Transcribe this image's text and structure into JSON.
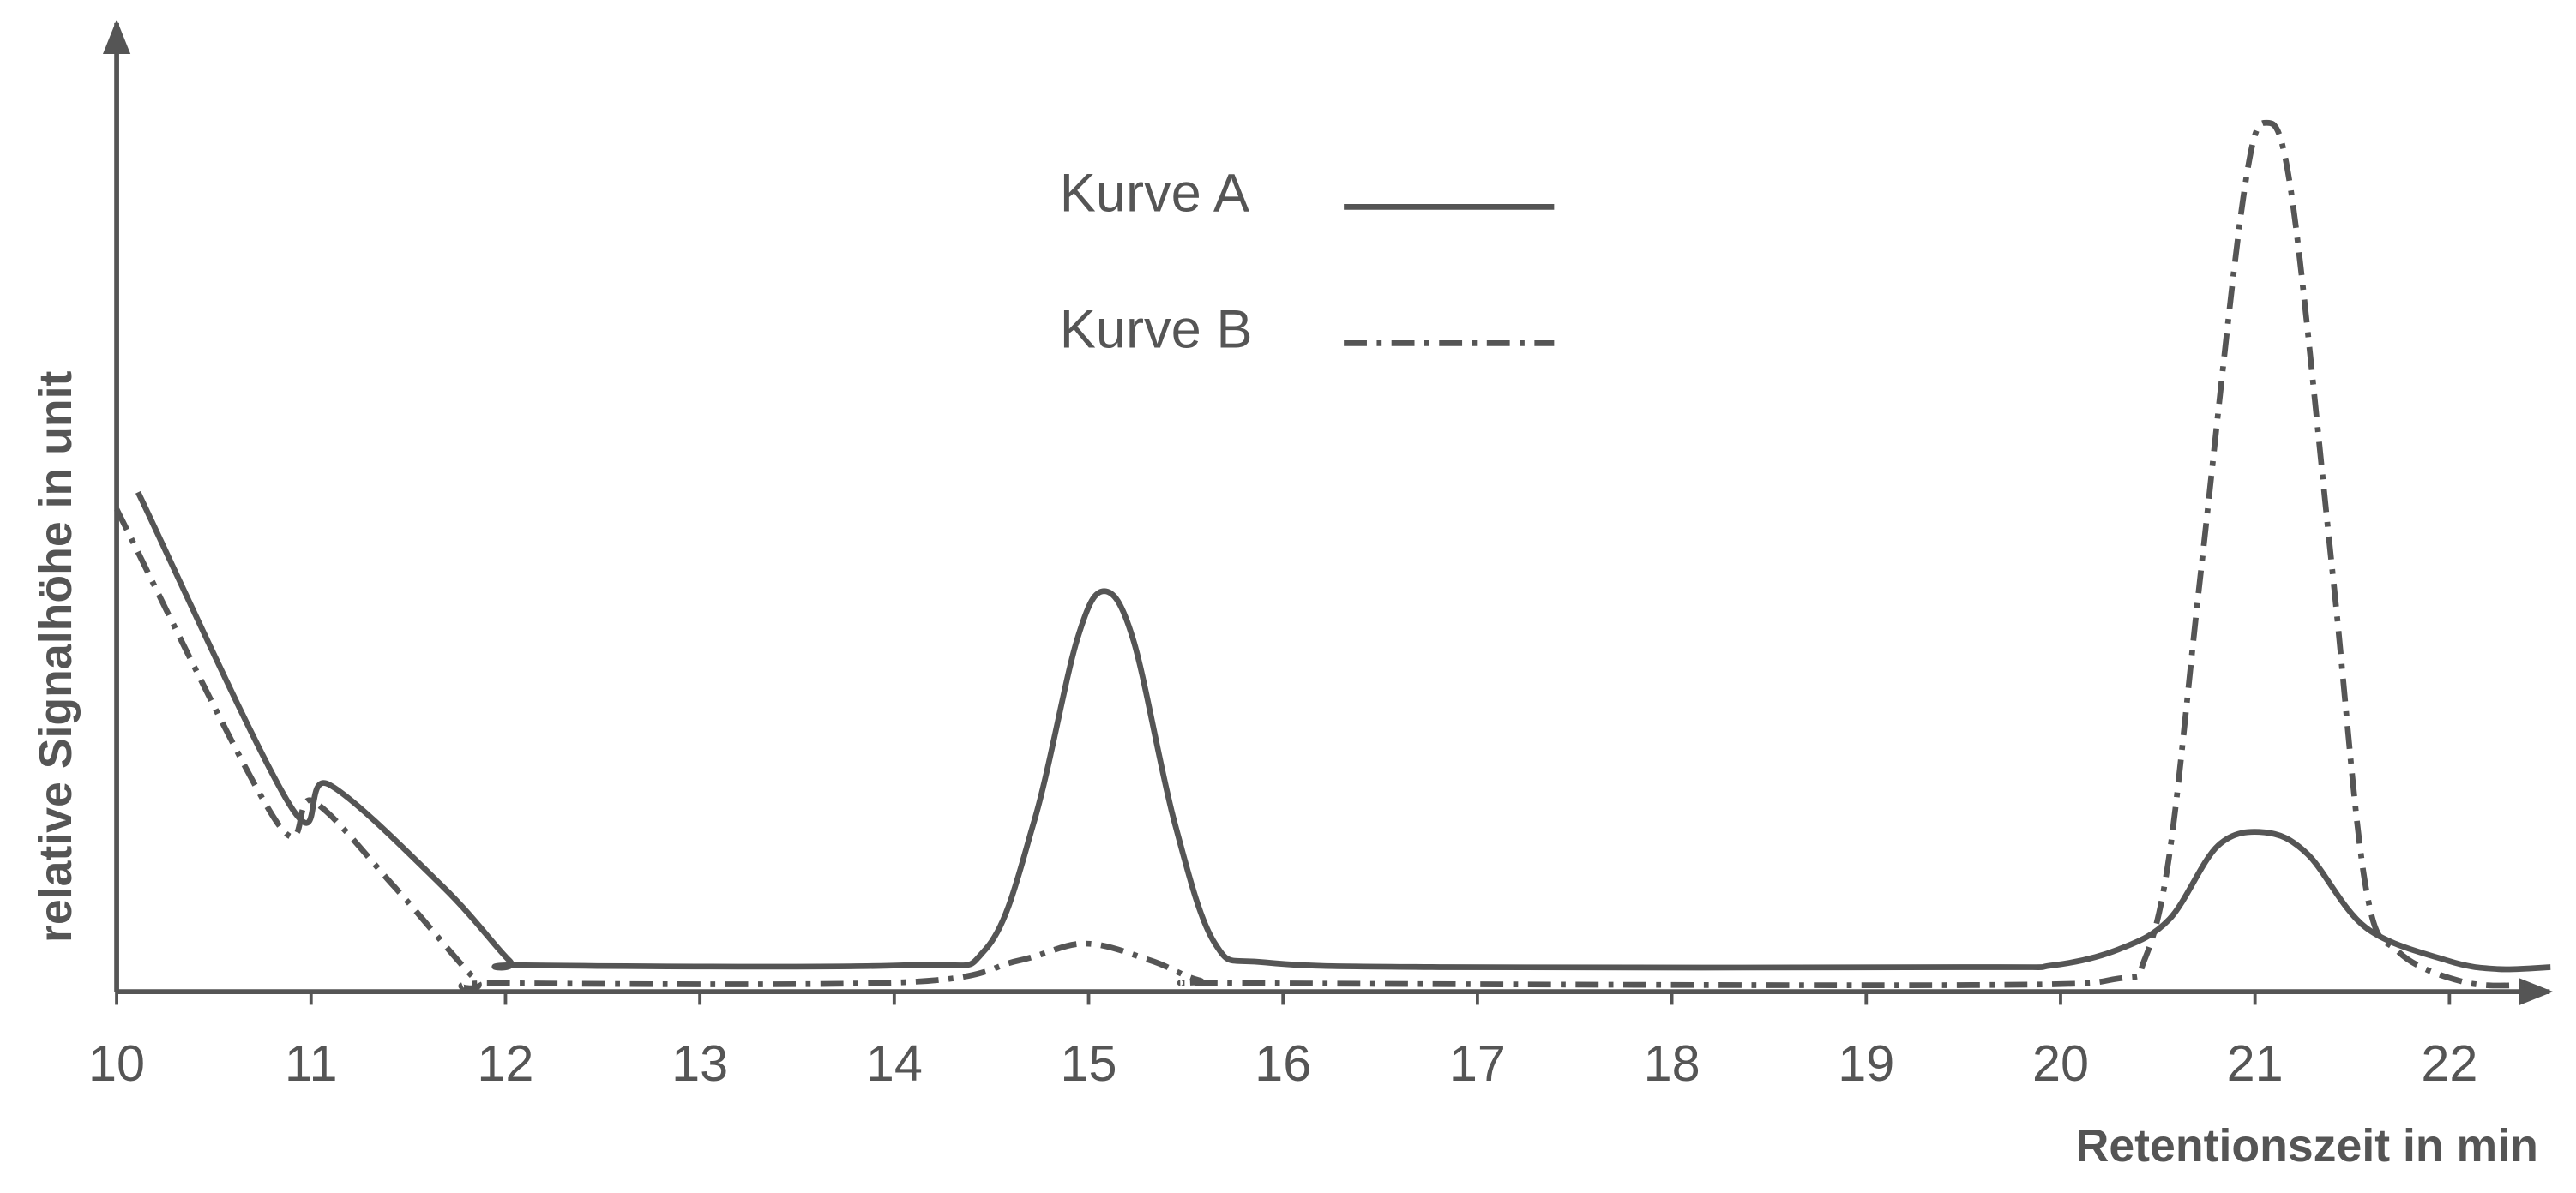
{
  "chart_data": {
    "type": "line",
    "x_label": "Retentionszeit in min",
    "y_label": "relative Signalhöhe in unit",
    "xlim": [
      10,
      22.6
    ],
    "xticks": [
      10,
      11,
      12,
      13,
      14,
      15,
      16,
      17,
      18,
      19,
      20,
      21,
      22
    ],
    "ylim": [
      0,
      100
    ],
    "series": [
      {
        "name": "Kurve  A",
        "color": "#555555",
        "style": "solid",
        "x": [
          10.11,
          10.9,
          11.09,
          11.68,
          12.02,
          12.1,
          14.05,
          14.47,
          14.72,
          14.94,
          15.08,
          15.23,
          15.44,
          15.65,
          15.91,
          16.84,
          19.54,
          19.96,
          20.3,
          20.56,
          20.81,
          21.05,
          21.27,
          21.57,
          21.99,
          22.25,
          22.52
        ],
        "values": [
          53.0,
          19.5,
          22.0,
          11.1,
          3.3,
          2.8,
          2.8,
          4.5,
          18.1,
          37.3,
          42.5,
          37.3,
          18.1,
          5.1,
          3.1,
          2.6,
          2.6,
          2.8,
          4.5,
          7.7,
          15.5,
          16.9,
          14.6,
          6.8,
          3.3,
          2.4,
          2.6
        ]
      },
      {
        "name": "Kurve B",
        "color": "#555555",
        "style": "dashdot",
        "x": [
          10.0,
          10.82,
          11.01,
          11.43,
          11.85,
          11.94,
          14.05,
          14.64,
          14.98,
          15.32,
          15.57,
          15.82,
          19.54,
          20.3,
          20.43,
          20.56,
          20.72,
          20.94,
          21.06,
          21.19,
          21.4,
          21.57,
          21.74,
          22.08,
          22.41
        ],
        "values": [
          51.2,
          18.1,
          20.2,
          11.1,
          1.2,
          0.9,
          1.0,
          3.3,
          5.1,
          3.3,
          1.2,
          0.9,
          0.7,
          1.4,
          3.3,
          14.6,
          44.3,
          84.3,
          92.2,
          84.3,
          44.3,
          11.1,
          4.2,
          1.0,
          0.7
        ]
      }
    ]
  }
}
